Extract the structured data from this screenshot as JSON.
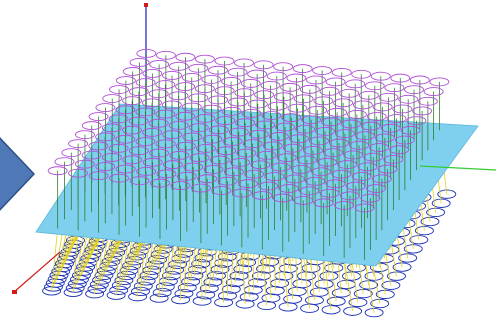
{
  "viewport": {
    "background": "#ffffff"
  },
  "scene": {
    "grid": {
      "rows": 14,
      "cols": 16
    },
    "top_ring_color": "#b14fd6",
    "stem_upper_color": "#2f7d2f",
    "stem_lower_color": "#e2d11b",
    "plane_color": "#7fd0ee",
    "bottom_ring_color": "#1a2fb8"
  },
  "axes": {
    "z_color": "#1a1ad0",
    "x_color": "#d41a1a",
    "y_color": "#33cc33"
  },
  "nav": {
    "icon": "chevron-right-icon",
    "color": "#4f79b6",
    "border": "#2c4f86"
  }
}
